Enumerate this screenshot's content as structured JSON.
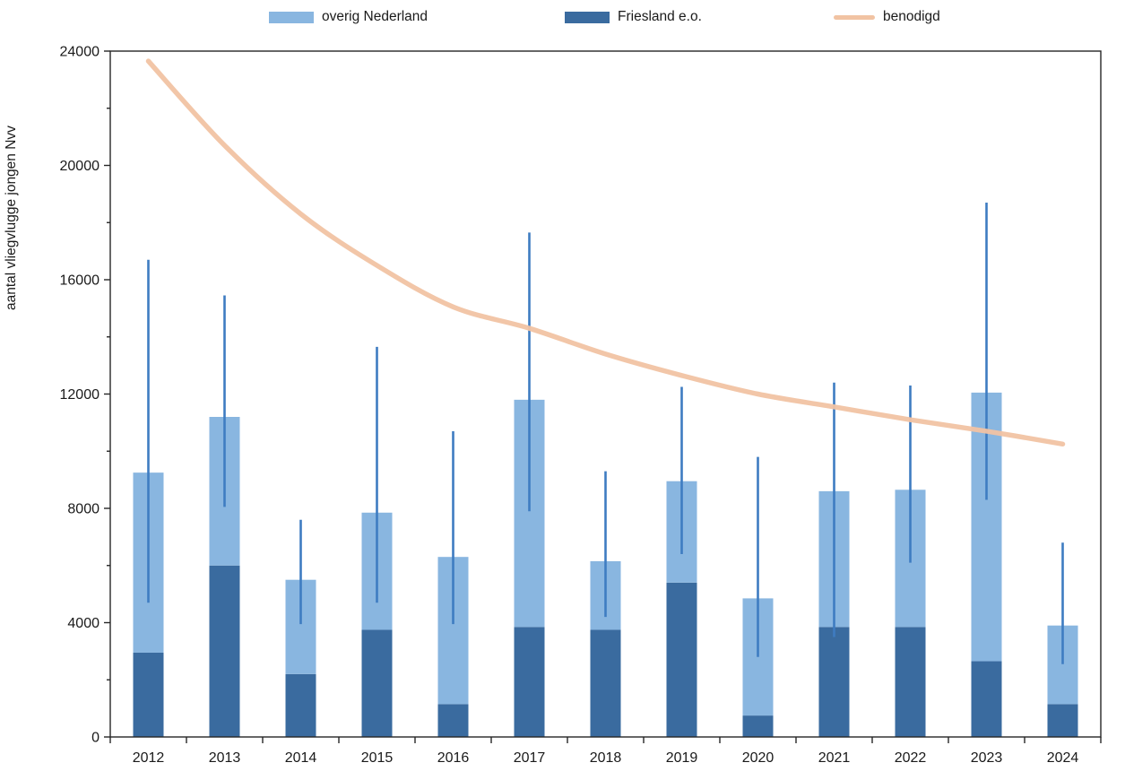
{
  "chart_data": {
    "type": "bar",
    "stacked": true,
    "title": "",
    "xlabel": "",
    "ylabel": "aantal vliegvlugge jongen Nvv",
    "ylim": [
      0,
      24000
    ],
    "ytick_step": 4000,
    "yminor_step": 2000,
    "ytick_labels": [
      "0",
      "4000",
      "8000",
      "12000",
      "16000",
      "20000",
      "24000"
    ],
    "grid": false,
    "legend_position": "top",
    "categories": [
      "2012",
      "2013",
      "2014",
      "2015",
      "2016",
      "2017",
      "2018",
      "2019",
      "2020",
      "2021",
      "2022",
      "2023",
      "2024"
    ],
    "series": [
      {
        "name": "Friesland e.o.",
        "color": "#3A6B9F",
        "values": [
          2950,
          6000,
          2200,
          3750,
          1150,
          3850,
          3750,
          5400,
          750,
          3850,
          3850,
          2650,
          1150
        ]
      },
      {
        "name": "overig Nederland",
        "color": "#89B6E0",
        "values": [
          6300,
          5200,
          3300,
          4100,
          5150,
          7950,
          2400,
          3550,
          4100,
          4750,
          4800,
          9400,
          2750
        ]
      }
    ],
    "stack_totals": [
      9250,
      11200,
      5500,
      7850,
      6300,
      11800,
      6150,
      8950,
      4850,
      8600,
      8650,
      12050,
      3900
    ],
    "error_bars": {
      "color": "#3E7CC1",
      "low": [
        4700,
        8050,
        3950,
        4700,
        3950,
        7900,
        4200,
        6400,
        2800,
        3500,
        6100,
        8300,
        2550
      ],
      "high": [
        16700,
        15450,
        7600,
        13650,
        10700,
        17650,
        9300,
        12250,
        9800,
        12400,
        12300,
        18700,
        6800
      ]
    },
    "line_series": {
      "name": "benodigd",
      "color": "#F1C3A3",
      "values": [
        23650,
        20700,
        18300,
        16500,
        15050,
        14300,
        13400,
        12650,
        12000,
        11550,
        11100,
        10700,
        10250
      ]
    },
    "legend": [
      {
        "label": "overig Nederland",
        "swatch": "rect",
        "color": "#89B6E0"
      },
      {
        "label": "Friesland e.o.",
        "swatch": "rect",
        "color": "#3A6B9F"
      },
      {
        "label": "benodigd",
        "swatch": "line",
        "color": "#F1C3A3"
      }
    ],
    "axis_color": "#262626"
  }
}
